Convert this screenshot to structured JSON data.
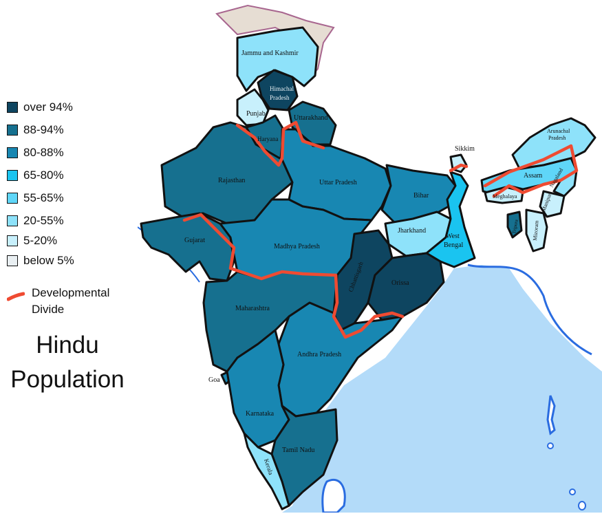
{
  "title_line1": "Hindu",
  "title_line2": "Population",
  "legend": [
    {
      "label": "over 94%",
      "color": "#0e4560"
    },
    {
      "label": "88-94%",
      "color": "#16708f"
    },
    {
      "label": "80-88%",
      "color": "#1887b2"
    },
    {
      "label": "65-80%",
      "color": "#1ac4f0"
    },
    {
      "label": "55-65%",
      "color": "#5fd6f8"
    },
    {
      "label": "20-55%",
      "color": "#8ee2fa"
    },
    {
      "label": "5-20%",
      "color": "#c8f0fc"
    },
    {
      "label": "below 5%",
      "color": "#e9eff2"
    }
  ],
  "divide": {
    "label_line1": "Developmental",
    "label_line2": "Divide",
    "color": "#ef4b32"
  },
  "colors": {
    "ocean": "#b3dbf9",
    "land": "#ffffff",
    "disputed": "#e6ddd3",
    "coast": "#2a6ce0"
  },
  "states": {
    "jammu_kashmir": "Jammu and Kashmir",
    "himachal_l1": "Himachal",
    "himachal_l2": "Pradesh",
    "punjab": "Punjab",
    "uttarakhand": "Uttarakhand",
    "haryana": "Haryana",
    "rajasthan": "Rajasthan",
    "uttar_pradesh": "Uttar Pradesh",
    "bihar": "Bihar",
    "sikkim": "Sikkim",
    "arunachal_l1": "Arunachal",
    "arunachal_l2": "Pradesh",
    "assam": "Assam",
    "nagaland": "Nagaland",
    "meghalaya": "Meghalaya",
    "manipur": "Manipur",
    "tripura": "Tripura",
    "mizoram": "Mizoram",
    "jharkhand": "Jharkhand",
    "west_bengal_l1": "West",
    "west_bengal_l2": "Bengal",
    "gujarat": "Gujarat",
    "madhya_pradesh": "Madhya Pradesh",
    "chhattisgarh": "Chhattisgarh",
    "orissa": "Orissa",
    "maharashtra": "Maharashtra",
    "andhra_pradesh": "Andhra Pradesh",
    "goa": "Goa",
    "karnataka": "Karnataka",
    "tamil_nadu": "Tamil Nadu",
    "kerala": "Kerala"
  }
}
